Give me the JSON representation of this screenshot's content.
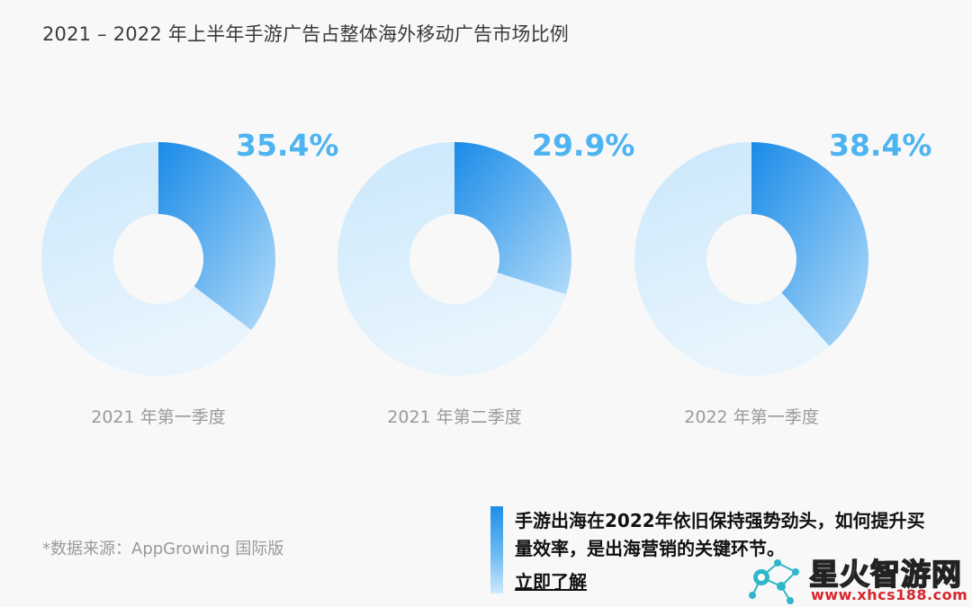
{
  "title": "2021 – 2022 年上半年手游广告占整体海外移动广告市场比例",
  "chart_data": {
    "type": "pie",
    "charts": [
      {
        "label": "2021 年第一季度",
        "value": 35.4,
        "display": "35.4%"
      },
      {
        "label": "2021 年第二季度",
        "value": 29.9,
        "display": "29.9%"
      },
      {
        "label": "2022 年第一季度",
        "value": 38.4,
        "display": "38.4%"
      }
    ],
    "colors": {
      "highlight_start": "#1a8be8",
      "highlight_end": "#b3dcf9",
      "rest_start": "#c9e7fb",
      "rest_end": "#e9f5fd",
      "value_text": "#4db4f1"
    }
  },
  "source": "*数据来源：AppGrowing 国际版",
  "promo": {
    "text": "手游出海在2022年依旧保持强势劲头，如何提升买量效率，是出海营销的关键环节。",
    "link": "立即了解"
  },
  "watermark": {
    "name": "星火智游网",
    "url": "www.xhcs188.com"
  }
}
